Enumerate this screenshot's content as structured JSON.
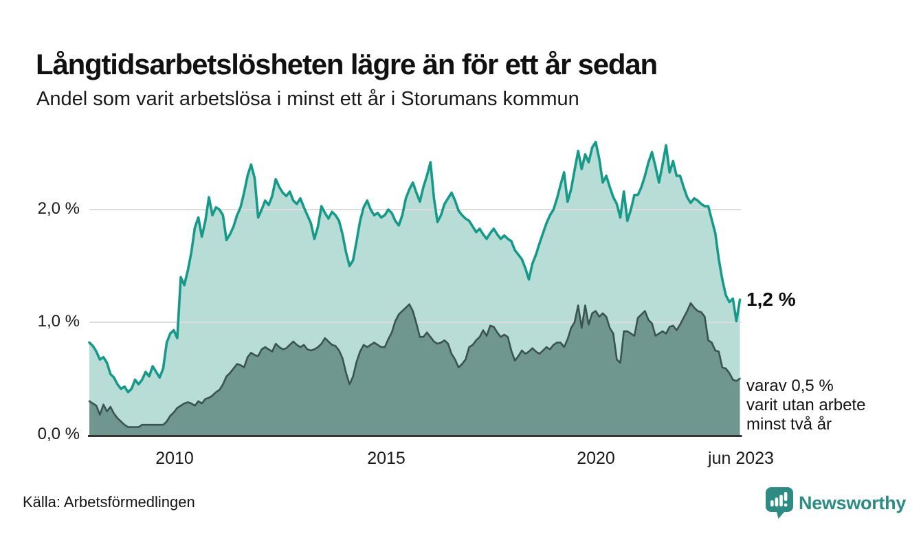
{
  "header": {
    "title": "Långtidsarbetslösheten lägre än för ett år sedan",
    "subtitle": "Andel som varit arbetslösa i minst ett år i Storumans kommun"
  },
  "annotations": {
    "end_value": "1,2 %",
    "note": "varav 0,5 %\nvarit utan arbete\nminst två år"
  },
  "source": {
    "label": "Källa: Arbetsförmedlingen"
  },
  "logo": {
    "text": "Newsworthy",
    "color": "#2e8b84",
    "icon": "newsworthy-speech-bubble-chart-icon"
  },
  "colors": {
    "line_1yr": "#17998a",
    "fill_1yr": "#b7ddd6",
    "line_2yr": "#3a534e",
    "fill_2yr": "#6f968f",
    "gridline": "#dcdcdc",
    "axis_baseline": "#333333",
    "text": "#111111",
    "brand_teal": "#2e8b84"
  },
  "chart_data": {
    "type": "area",
    "title": "Långtidsarbetslösheten lägre än för ett år sedan",
    "subtitle": "Andel som varit arbetslösa i minst ett år i Storumans kommun",
    "x_start": "2008-01",
    "x_end": "2023-06",
    "frequency": "monthly",
    "unit": "%",
    "ylim": [
      0,
      2.75
    ],
    "grid_values": [
      1.0,
      2.0
    ],
    "y_tick_labels": [
      "2,0 %",
      "1,0 %",
      "0,0 %"
    ],
    "y_tick_values": [
      2.0,
      1.0,
      0.0
    ],
    "x_tick_labels": [
      "2010",
      "2015",
      "2020",
      "jun 2023"
    ],
    "x_tick_years": [
      2010.04,
      2015.04,
      2020.04,
      2023.46
    ],
    "legend_position": "none",
    "series": [
      {
        "name": "Andel arbetslösa minst ett år",
        "color": "#17998a",
        "fill": "#b7ddd6",
        "end_label": "1,2 %",
        "values": [
          0.82,
          0.79,
          0.74,
          0.67,
          0.69,
          0.64,
          0.54,
          0.51,
          0.45,
          0.41,
          0.43,
          0.38,
          0.41,
          0.49,
          0.45,
          0.49,
          0.56,
          0.52,
          0.61,
          0.56,
          0.51,
          0.59,
          0.82,
          0.9,
          0.93,
          0.86,
          1.4,
          1.33,
          1.46,
          1.62,
          1.84,
          1.93,
          1.76,
          1.9,
          2.11,
          1.95,
          2.02,
          2.0,
          1.95,
          1.73,
          1.78,
          1.85,
          1.95,
          2.02,
          2.15,
          2.3,
          2.4,
          2.28,
          1.93,
          2.0,
          2.08,
          2.04,
          2.12,
          2.27,
          2.2,
          2.15,
          2.12,
          2.16,
          2.08,
          2.05,
          2.1,
          2.02,
          1.95,
          1.88,
          1.74,
          1.85,
          2.03,
          1.97,
          1.92,
          1.98,
          1.95,
          1.9,
          1.78,
          1.62,
          1.5,
          1.55,
          1.72,
          1.9,
          2.02,
          2.08,
          2.0,
          1.95,
          1.97,
          1.93,
          1.95,
          2.0,
          1.97,
          1.9,
          1.86,
          1.95,
          2.1,
          2.18,
          2.24,
          2.15,
          2.07,
          2.2,
          2.3,
          2.42,
          2.1,
          1.89,
          1.95,
          2.05,
          2.1,
          2.15,
          2.08,
          1.99,
          1.95,
          1.92,
          1.9,
          1.85,
          1.8,
          1.83,
          1.78,
          1.74,
          1.79,
          1.83,
          1.78,
          1.74,
          1.77,
          1.74,
          1.72,
          1.64,
          1.6,
          1.56,
          1.48,
          1.38,
          1.52,
          1.6,
          1.7,
          1.79,
          1.88,
          1.95,
          2.0,
          2.1,
          2.22,
          2.33,
          2.07,
          2.18,
          2.35,
          2.52,
          2.36,
          2.49,
          2.42,
          2.55,
          2.6,
          2.45,
          2.24,
          2.3,
          2.2,
          2.11,
          2.05,
          1.93,
          2.16,
          1.9,
          2.0,
          2.13,
          2.13,
          2.2,
          2.3,
          2.42,
          2.51,
          2.38,
          2.24,
          2.4,
          2.57,
          2.33,
          2.43,
          2.3,
          2.3,
          2.2,
          2.11,
          2.06,
          2.1,
          2.08,
          2.05,
          2.03,
          2.03,
          1.91,
          1.79,
          1.56,
          1.38,
          1.24,
          1.18,
          1.21,
          1.01,
          1.2
        ]
      },
      {
        "name": "varav arbetslösa minst två år",
        "color": "#3a534e",
        "fill": "#6f968f",
        "end_label": "varav 0,5 % varit utan arbete minst två år",
        "values": [
          0.3,
          0.28,
          0.26,
          0.18,
          0.27,
          0.21,
          0.25,
          0.19,
          0.15,
          0.12,
          0.09,
          0.07,
          0.07,
          0.07,
          0.07,
          0.09,
          0.09,
          0.09,
          0.09,
          0.09,
          0.09,
          0.09,
          0.12,
          0.17,
          0.2,
          0.24,
          0.26,
          0.28,
          0.29,
          0.28,
          0.26,
          0.3,
          0.28,
          0.32,
          0.33,
          0.35,
          0.38,
          0.4,
          0.45,
          0.52,
          0.55,
          0.59,
          0.63,
          0.62,
          0.6,
          0.69,
          0.73,
          0.71,
          0.7,
          0.76,
          0.78,
          0.76,
          0.74,
          0.81,
          0.78,
          0.76,
          0.77,
          0.8,
          0.83,
          0.8,
          0.78,
          0.8,
          0.76,
          0.75,
          0.76,
          0.78,
          0.81,
          0.86,
          0.83,
          0.8,
          0.79,
          0.75,
          0.68,
          0.55,
          0.45,
          0.52,
          0.65,
          0.74,
          0.8,
          0.78,
          0.8,
          0.82,
          0.8,
          0.78,
          0.78,
          0.85,
          0.91,
          1.01,
          1.07,
          1.1,
          1.13,
          1.16,
          1.1,
          0.99,
          0.87,
          0.87,
          0.91,
          0.87,
          0.83,
          0.81,
          0.82,
          0.84,
          0.81,
          0.72,
          0.67,
          0.6,
          0.63,
          0.67,
          0.78,
          0.8,
          0.84,
          0.87,
          0.93,
          0.88,
          0.97,
          0.96,
          0.91,
          0.87,
          0.89,
          0.87,
          0.75,
          0.66,
          0.7,
          0.75,
          0.72,
          0.74,
          0.77,
          0.74,
          0.72,
          0.75,
          0.78,
          0.76,
          0.8,
          0.82,
          0.82,
          0.78,
          0.85,
          0.95,
          1.0,
          1.15,
          0.95,
          1.15,
          0.98,
          1.08,
          1.1,
          1.05,
          1.08,
          1.05,
          0.95,
          0.9,
          0.67,
          0.64,
          0.92,
          0.92,
          0.9,
          0.88,
          1.04,
          1.07,
          1.1,
          1.02,
          0.99,
          0.88,
          0.9,
          0.92,
          0.9,
          0.96,
          0.97,
          0.93,
          0.98,
          1.04,
          1.1,
          1.17,
          1.13,
          1.1,
          1.09,
          1.05,
          0.84,
          0.82,
          0.75,
          0.74,
          0.6,
          0.59,
          0.55,
          0.49,
          0.48,
          0.5
        ]
      }
    ]
  }
}
